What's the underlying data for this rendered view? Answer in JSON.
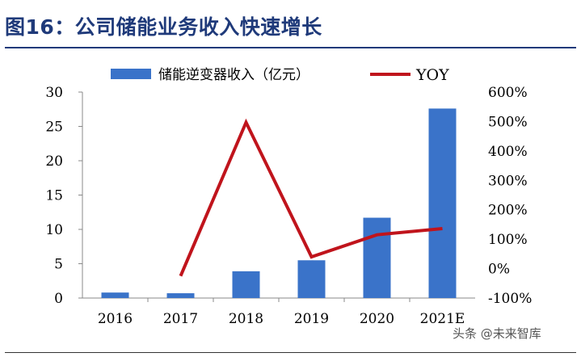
{
  "title": "图16：公司储能业务收入快速增长",
  "watermark": "头条 @未来智库",
  "colors": {
    "bar": "#3a73c9",
    "line": "#c0141c",
    "title": "#1f3a7a"
  },
  "chart_data": {
    "type": "bar+line",
    "categories": [
      "2016",
      "2017",
      "2018",
      "2019",
      "2020",
      "2021E"
    ],
    "series": [
      {
        "name": "储能逆变器收入（亿元）",
        "type": "bar",
        "axis": "left",
        "values": [
          0.8,
          0.7,
          3.9,
          5.5,
          11.7,
          27.6
        ]
      },
      {
        "name": "YOY",
        "type": "line",
        "axis": "right",
        "values": [
          null,
          -25,
          497,
          40,
          115,
          136
        ]
      }
    ],
    "y_left": {
      "min": 0,
      "max": 30,
      "ticks": [
        0,
        5,
        10,
        15,
        20,
        25,
        30
      ]
    },
    "y_right": {
      "min": -100,
      "max": 600,
      "ticks": [
        "-100%",
        "0%",
        "100%",
        "200%",
        "300%",
        "400%",
        "500%",
        "600%"
      ]
    },
    "legend_position": "top",
    "grid": false
  }
}
